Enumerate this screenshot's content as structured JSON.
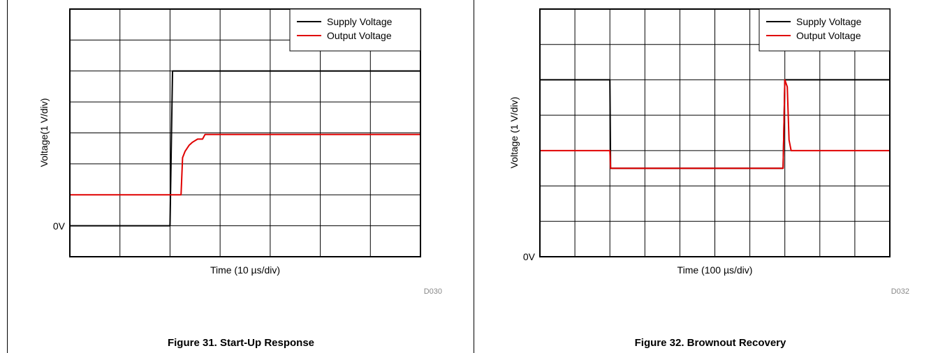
{
  "chart_data": [
    {
      "type": "line",
      "title": "Figure 31. Start-Up Response",
      "code": "D030",
      "xlabel": "Time (10 µs/div)",
      "ylabel": "Voltage(1 V/div)",
      "y_zero_label": "0V",
      "x_unit": "div",
      "y_unit": "div",
      "xlim": [
        0,
        7
      ],
      "ylim": [
        -1,
        7
      ],
      "grid": true,
      "legend_position": "top-right",
      "series": [
        {
          "name": "Supply Voltage",
          "color": "#000000",
          "points": [
            [
              0,
              0
            ],
            [
              2.0,
              0
            ],
            [
              2.05,
              5
            ],
            [
              7,
              5
            ]
          ]
        },
        {
          "name": "Output Voltage",
          "color": "#e00000",
          "points": [
            [
              0,
              1
            ],
            [
              2.22,
              1
            ],
            [
              2.25,
              2.2
            ],
            [
              2.3,
              2.4
            ],
            [
              2.38,
              2.6
            ],
            [
              2.45,
              2.7
            ],
            [
              2.55,
              2.8
            ],
            [
              2.65,
              2.8
            ],
            [
              2.7,
              2.95
            ],
            [
              7,
              2.95
            ]
          ]
        }
      ]
    },
    {
      "type": "line",
      "title": "Figure 32. Brownout Recovery",
      "code": "D032",
      "xlabel": "Time (100 µs/div)",
      "ylabel": "Voltage (1 V/div)",
      "y_zero_label": "0V",
      "x_unit": "div",
      "y_unit": "div",
      "xlim": [
        0,
        10
      ],
      "ylim": [
        0,
        7
      ],
      "grid": true,
      "legend_position": "top-right",
      "series": [
        {
          "name": "Supply Voltage",
          "color": "#000000",
          "points": [
            [
              0,
              5
            ],
            [
              2.0,
              5
            ],
            [
              2.02,
              2.5
            ],
            [
              6.95,
              2.5
            ],
            [
              7.0,
              5
            ],
            [
              10,
              5
            ]
          ]
        },
        {
          "name": "Output Voltage",
          "color": "#e00000",
          "points": [
            [
              0,
              3
            ],
            [
              2.0,
              3
            ],
            [
              2.02,
              2.5
            ],
            [
              6.95,
              2.5
            ],
            [
              7.0,
              5
            ],
            [
              7.07,
              4.8
            ],
            [
              7.12,
              3.3
            ],
            [
              7.18,
              3
            ],
            [
              10,
              3
            ]
          ]
        }
      ]
    }
  ]
}
